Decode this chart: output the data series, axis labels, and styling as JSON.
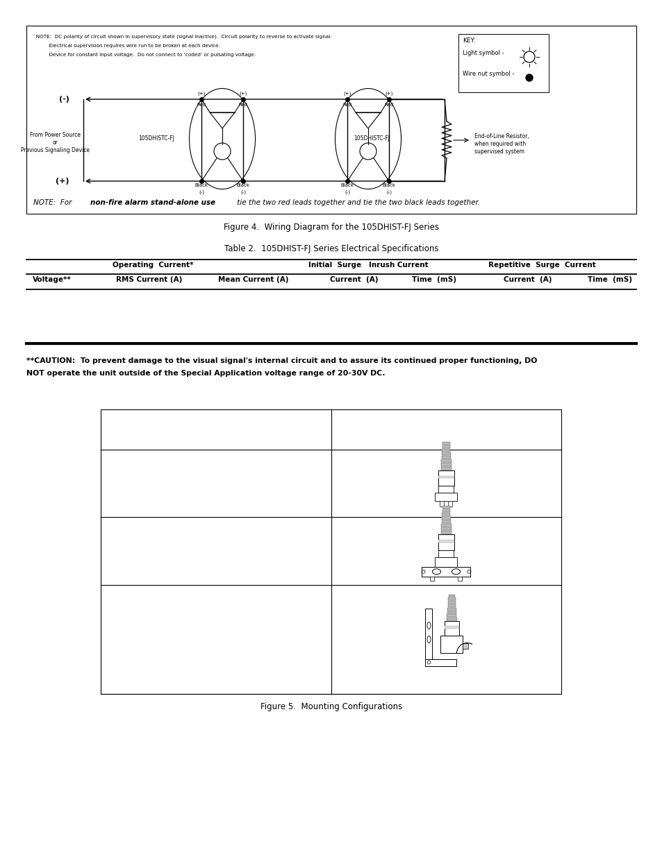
{
  "bg_color": "#ffffff",
  "page_width": 9.54,
  "page_height": 12.35,
  "dpi": 100,
  "fig4_caption": "Figure 4.  Wiring Diagram for the 105DHIST-FJ Series",
  "table2_title": "Table 2.  105DHIST-FJ Series Electrical Specifications",
  "fig5_caption": "Figure 5.  Mounting Configurations",
  "caution_text_lines": [
    "**CAUTION:  To prevent damage to the visual signal's internal circuit and to assure its continued proper functioning, DO",
    "NOT operate the unit outside of the Special Application voltage range of 20-30V DC."
  ],
  "note_lines": [
    "`NOTE:  DC polarity of circuit shown in supervisory state (signal inactive).  Circuit polarity to reverse to activate signal.",
    "          Electrical supervision requires wire run to be broken at each device.",
    "          Device for constant input voltage.  Do not connect to ‘coded’ or pulsating voltage."
  ]
}
